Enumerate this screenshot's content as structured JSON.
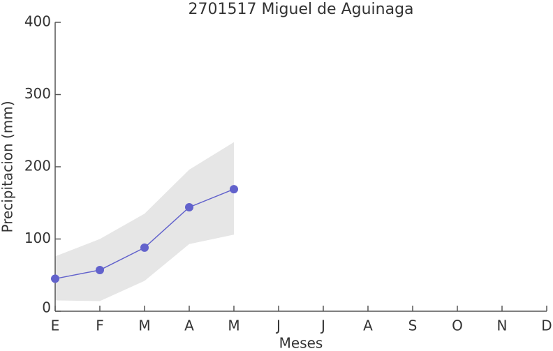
{
  "chart_data": {
    "type": "line",
    "title": "2701517 Miguel de Aguinaga",
    "xlabel": "Meses",
    "ylabel": "Precipitacion (mm)",
    "categories": [
      "E",
      "F",
      "M",
      "A",
      "M",
      "J",
      "J",
      "A",
      "S",
      "O",
      "N",
      "D"
    ],
    "values": [
      45,
      57,
      88,
      144,
      169,
      null,
      null,
      null,
      null,
      null,
      null,
      null
    ],
    "band_lower": [
      15,
      14,
      42,
      93,
      106,
      null,
      null,
      null,
      null,
      null,
      null,
      null
    ],
    "band_upper": [
      76,
      100,
      135,
      196,
      234,
      null,
      null,
      null,
      null,
      null,
      null,
      null
    ],
    "color": "#6262cc",
    "band_color": "#e6e6e6",
    "ylim": [
      0,
      400
    ],
    "yticks": [
      0,
      100,
      200,
      300,
      400
    ]
  }
}
